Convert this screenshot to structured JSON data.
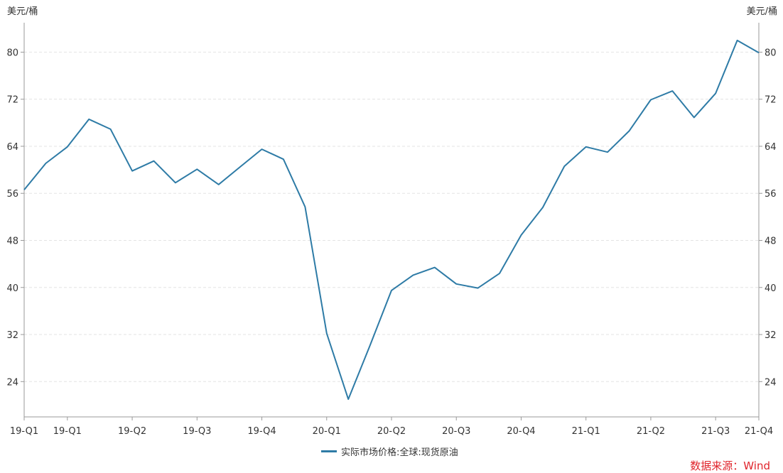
{
  "chart_data": {
    "type": "line",
    "y_unit_left": "美元/桶",
    "y_unit_right": "美元/桶",
    "ylim": [
      18,
      85
    ],
    "yticks": [
      24,
      32,
      40,
      48,
      56,
      64,
      72,
      80
    ],
    "grid": "horizontal dashed",
    "legend_position": "bottom-center",
    "x_tick_labels": [
      {
        "label": "19-Q1",
        "i": 0
      },
      {
        "label": "19-Q1",
        "i": 2
      },
      {
        "label": "19-Q2",
        "i": 5
      },
      {
        "label": "19-Q3",
        "i": 8
      },
      {
        "label": "19-Q4",
        "i": 11
      },
      {
        "label": "20-Q1",
        "i": 14
      },
      {
        "label": "20-Q2",
        "i": 17
      },
      {
        "label": "20-Q3",
        "i": 20
      },
      {
        "label": "20-Q4",
        "i": 23
      },
      {
        "label": "21-Q1",
        "i": 26
      },
      {
        "label": "21-Q2",
        "i": 29
      },
      {
        "label": "21-Q3",
        "i": 32
      },
      {
        "label": "21-Q4",
        "i": 34
      }
    ],
    "series": [
      {
        "name": "实际市场价格:全球:现货原油",
        "color": "#2e7ba6",
        "values": [
          56.6,
          61.1,
          63.9,
          68.6,
          66.9,
          59.8,
          61.5,
          57.8,
          60.1,
          57.5,
          60.5,
          63.5,
          61.8,
          53.7,
          32.2,
          21.0,
          30.1,
          39.5,
          42.1,
          43.4,
          40.6,
          39.9,
          42.4,
          48.9,
          53.6,
          60.6,
          63.9,
          63.0,
          66.6,
          71.9,
          73.4,
          68.9,
          73.0,
          82.0,
          79.9
        ]
      }
    ]
  },
  "source": {
    "text": "数据来源：Wind",
    "color": "#e0242b"
  }
}
